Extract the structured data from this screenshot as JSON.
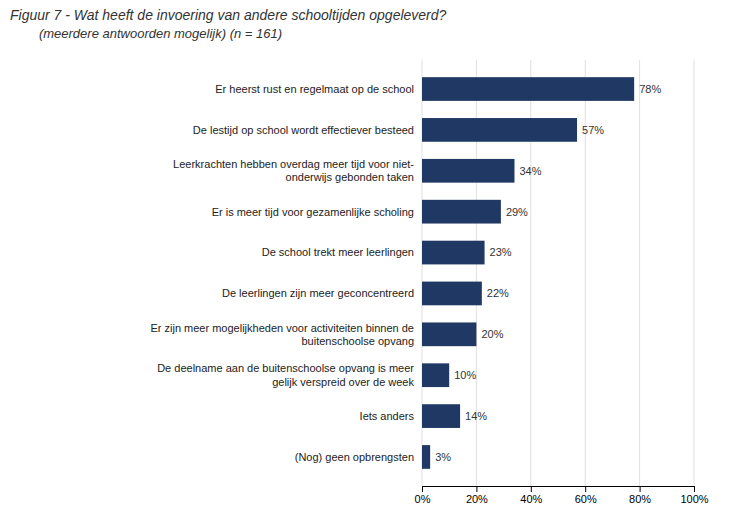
{
  "chart_data": {
    "type": "bar",
    "orientation": "horizontal",
    "title": "Figuur 7 - Wat heeft de invoering van andere schooltijden opgeleverd?",
    "subtitle": "        (meerdere antwoorden mogelijk) (n = 161)",
    "categories": [
      "(Nog) geen opbrengsten",
      "Iets anders",
      "De deelname aan de buitenschoolse opvang is meer\ngelijk verspreid over de week",
      "Er zijn meer mogelijkheden voor activiteiten binnen de\nbuitenschoolse opvang",
      "De leerlingen zijn meer geconcentreerd",
      "De school trekt meer leerlingen",
      "Er is meer tijd voor gezamenlijke scholing",
      "Leerkrachten hebben overdag meer tijd voor niet-\nonderwijs gebonden taken",
      "De lestijd op school wordt effectiever besteed",
      "Er heerst rust en regelmaat op de school"
    ],
    "values": [
      3,
      14,
      10,
      20,
      22,
      23,
      29,
      34,
      57,
      78
    ],
    "value_labels": [
      "3%",
      "14%",
      "10%",
      "20%",
      "22%",
      "23%",
      "29%",
      "34%",
      "57%",
      "78%"
    ],
    "data_labels": true,
    "color": "#1F3864",
    "xlim": [
      0,
      100
    ],
    "xticks": [
      {
        "value": 0,
        "label": "0%"
      },
      {
        "value": 20,
        "label": "20%"
      },
      {
        "value": 40,
        "label": "40%"
      },
      {
        "value": 60,
        "label": "60%"
      },
      {
        "value": 80,
        "label": "80%"
      },
      {
        "value": 100,
        "label": "100%"
      }
    ],
    "grid": true
  }
}
